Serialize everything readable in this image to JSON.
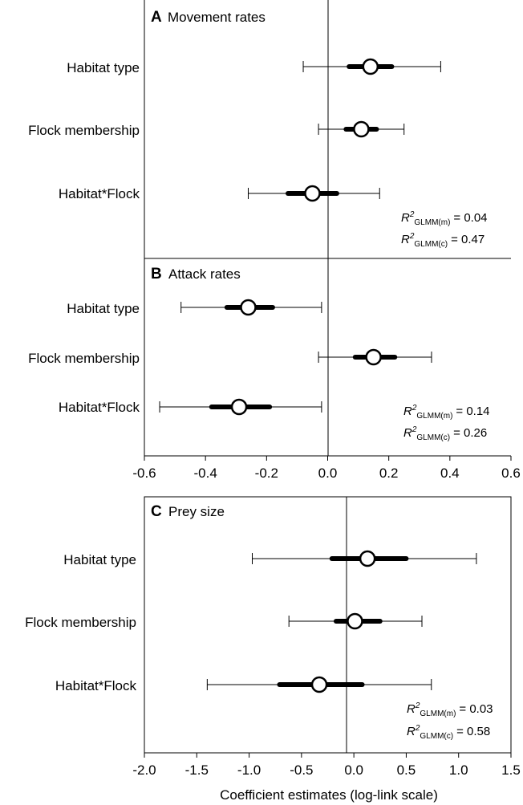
{
  "chart_data": [
    {
      "type": "forest",
      "panel_letter": "A",
      "title": "Movement rates",
      "xlim": [
        -0.6,
        0.6
      ],
      "xticks": [],
      "xlabel": "",
      "grid": false,
      "rows": [
        {
          "label": "Habitat type",
          "estimate": 0.14,
          "ci_inner": [
            0.07,
            0.21
          ],
          "ci_outer": [
            -0.08,
            0.37
          ]
        },
        {
          "label": "Flock membership",
          "estimate": 0.11,
          "ci_inner": [
            0.06,
            0.16
          ],
          "ci_outer": [
            -0.03,
            0.25
          ]
        },
        {
          "label": "Habitat*Flock",
          "estimate": -0.05,
          "ci_inner": [
            -0.13,
            0.03
          ],
          "ci_outer": [
            -0.26,
            0.17
          ]
        }
      ],
      "r2": [
        {
          "base": "R",
          "sup": "2",
          "sub": "GLMM(m)",
          "value": "= 0.04"
        },
        {
          "base": "R",
          "sup": "2",
          "sub": "GLMM(c)",
          "value": "= 0.47"
        }
      ]
    },
    {
      "type": "forest",
      "panel_letter": "B",
      "title": "Attack rates",
      "xlim": [
        -0.6,
        0.6
      ],
      "xticks": [
        -0.6,
        -0.4,
        -0.2,
        0.0,
        0.2,
        0.4,
        0.6
      ],
      "xticklabels": [
        "-0.6",
        "-0.4",
        "-0.2",
        "0.0",
        "0.2",
        "0.4",
        "0.6"
      ],
      "xlabel": "",
      "grid": false,
      "rows": [
        {
          "label": "Habitat type",
          "estimate": -0.26,
          "ci_inner": [
            -0.33,
            -0.18
          ],
          "ci_outer": [
            -0.48,
            -0.02
          ]
        },
        {
          "label": "Flock membership",
          "estimate": 0.15,
          "ci_inner": [
            0.09,
            0.22
          ],
          "ci_outer": [
            -0.03,
            0.34
          ]
        },
        {
          "label": "Habitat*Flock",
          "estimate": -0.29,
          "ci_inner": [
            -0.38,
            -0.19
          ],
          "ci_outer": [
            -0.55,
            -0.02
          ]
        }
      ],
      "r2": [
        {
          "base": "R",
          "sup": "2",
          "sub": "GLMM(m)",
          "value": "= 0.14"
        },
        {
          "base": "R",
          "sup": "2",
          "sub": "GLMM(c)",
          "value": "= 0.26"
        }
      ]
    },
    {
      "type": "forest",
      "panel_letter": "C",
      "title": "Prey size",
      "xlim": [
        -2.0,
        1.5
      ],
      "xticks": [
        -2.0,
        -1.5,
        -1.0,
        -0.5,
        0.0,
        0.5,
        1.0,
        1.5
      ],
      "xticklabels": [
        "-2.0",
        "-1.5",
        "-1.0",
        "-0.5",
        "0.0",
        "0.5",
        "1.0",
        "1.5"
      ],
      "xlabel": "Coefficient estimates (log-link scale)",
      "grid": false,
      "rows": [
        {
          "label": "Habitat type",
          "estimate": 0.13,
          "ci_inner": [
            -0.21,
            0.5
          ],
          "ci_outer": [
            -0.97,
            1.17
          ]
        },
        {
          "label": "Flock membership",
          "estimate": 0.01,
          "ci_inner": [
            -0.17,
            0.25
          ],
          "ci_outer": [
            -0.62,
            0.65
          ]
        },
        {
          "label": "Habitat*Flock",
          "estimate": -0.33,
          "ci_inner": [
            -0.71,
            0.08
          ],
          "ci_outer": [
            -1.4,
            0.74
          ]
        }
      ],
      "r2": [
        {
          "base": "R",
          "sup": "2",
          "sub": "GLMM(m)",
          "value": "= 0.03"
        },
        {
          "base": "R",
          "sup": "2",
          "sub": "GLMM(c)",
          "value": "= 0.58"
        }
      ]
    }
  ]
}
